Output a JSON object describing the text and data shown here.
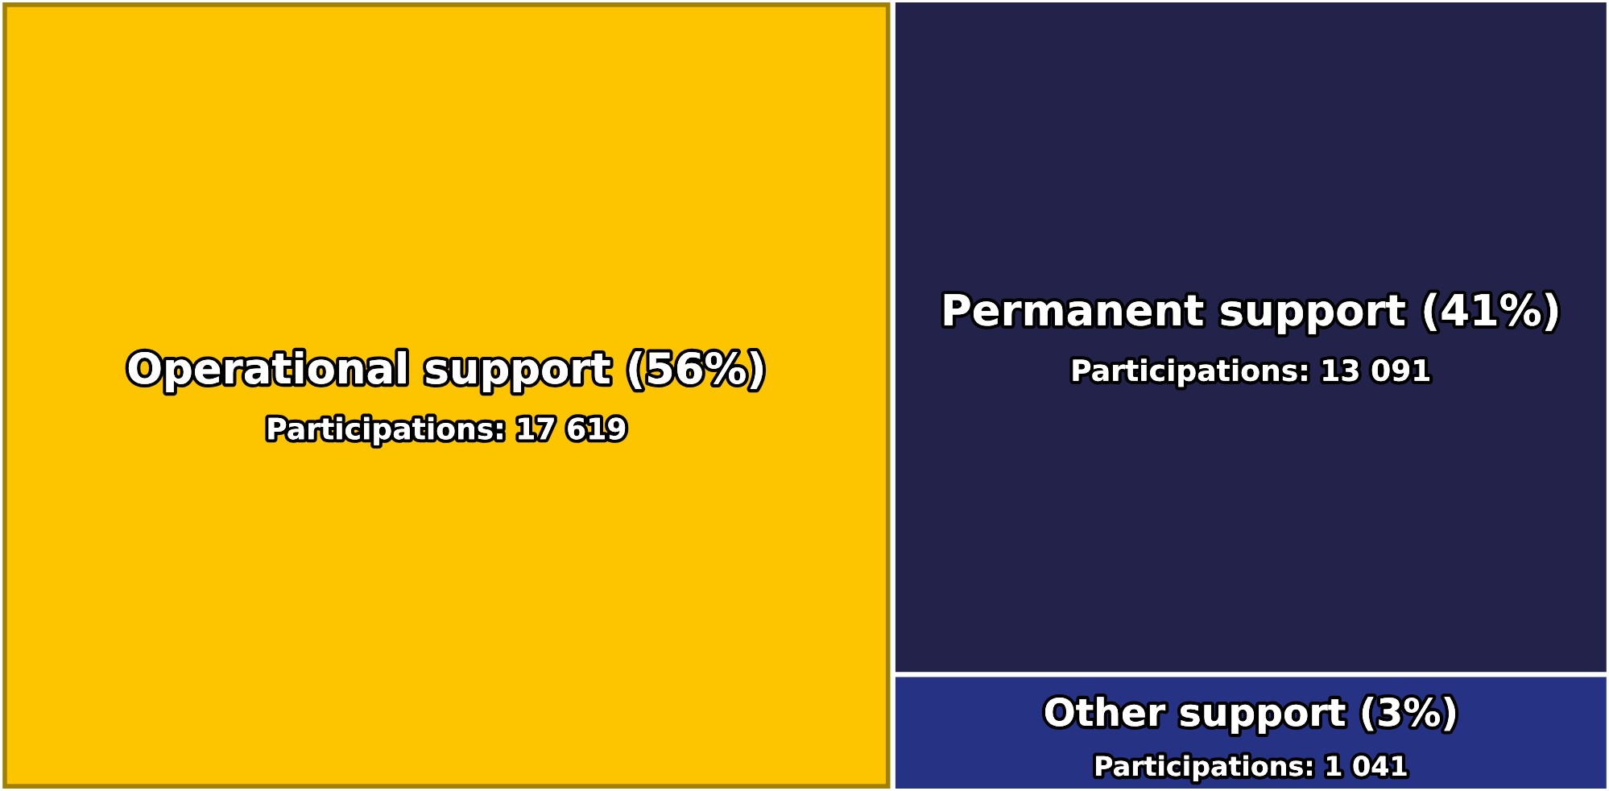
{
  "chart_data": {
    "type": "other",
    "categories": [
      "Operational support (56%)",
      "Permanent support (41%)",
      "Other support (3%)"
    ],
    "values": [
      17619,
      13091,
      1041
    ],
    "value_labels": [
      "Participations: 17 619",
      "Participations: 13 091",
      "Participations: 1 041"
    ],
    "colors": [
      "#fdc500",
      "#23224a",
      "#263385"
    ]
  }
}
